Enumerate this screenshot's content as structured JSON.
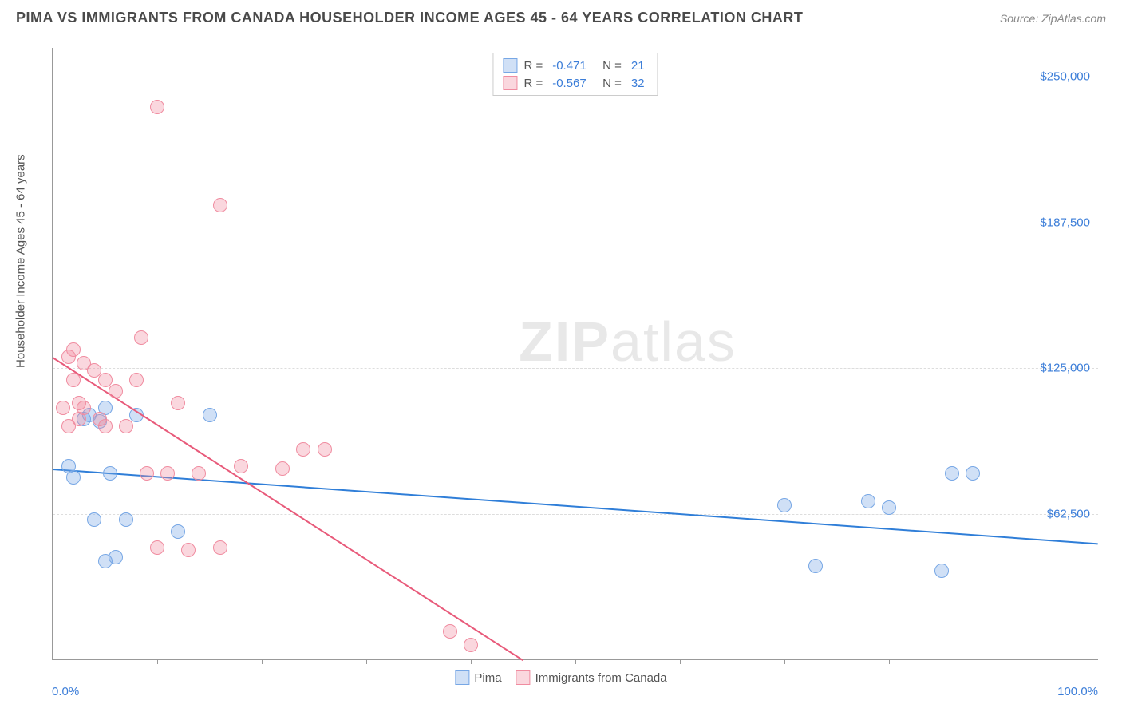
{
  "title": "PIMA VS IMMIGRANTS FROM CANADA HOUSEHOLDER INCOME AGES 45 - 64 YEARS CORRELATION CHART",
  "source": "Source: ZipAtlas.com",
  "watermark_bold": "ZIP",
  "watermark_light": "atlas",
  "chart": {
    "type": "scatter",
    "xlim": [
      0,
      100
    ],
    "ylim": [
      0,
      262500
    ],
    "x_label_min": "0.0%",
    "x_label_max": "100.0%",
    "y_axis_title": "Householder Income Ages 45 - 64 years",
    "y_ticks": [
      {
        "v": 62500,
        "label": "$62,500"
      },
      {
        "v": 125000,
        "label": "$125,000"
      },
      {
        "v": 187500,
        "label": "$187,500"
      },
      {
        "v": 250000,
        "label": "$250,000"
      }
    ],
    "x_tick_positions": [
      10,
      20,
      30,
      40,
      50,
      60,
      70,
      80,
      90
    ],
    "background_color": "#ffffff",
    "grid_color": "#dddddd",
    "series": [
      {
        "name": "Pima",
        "color_fill": "rgba(119,167,229,0.35)",
        "color_stroke": "#77a7e5",
        "line_color": "#2f7ed8",
        "R": "-0.471",
        "N": "21",
        "trend": {
          "x1": 0,
          "y1": 82000,
          "x2": 100,
          "y2": 50000
        },
        "points": [
          {
            "x": 1.5,
            "y": 83000
          },
          {
            "x": 2,
            "y": 78000
          },
          {
            "x": 3,
            "y": 103000
          },
          {
            "x": 3.5,
            "y": 105000
          },
          {
            "x": 4,
            "y": 60000
          },
          {
            "x": 4.5,
            "y": 102000
          },
          {
            "x": 5,
            "y": 42000
          },
          {
            "x": 5,
            "y": 108000
          },
          {
            "x": 5.5,
            "y": 80000
          },
          {
            "x": 6,
            "y": 44000
          },
          {
            "x": 7,
            "y": 60000
          },
          {
            "x": 8,
            "y": 105000
          },
          {
            "x": 12,
            "y": 55000
          },
          {
            "x": 15,
            "y": 105000
          },
          {
            "x": 70,
            "y": 66000
          },
          {
            "x": 73,
            "y": 40000
          },
          {
            "x": 78,
            "y": 68000
          },
          {
            "x": 80,
            "y": 65000
          },
          {
            "x": 85,
            "y": 38000
          },
          {
            "x": 86,
            "y": 80000
          },
          {
            "x": 88,
            "y": 80000
          }
        ]
      },
      {
        "name": "Immigrants from Canada",
        "color_fill": "rgba(240,140,160,0.35)",
        "color_stroke": "#f08ca0",
        "line_color": "#e85a7a",
        "R": "-0.567",
        "N": "32",
        "trend": {
          "x1": 0,
          "y1": 130000,
          "x2": 45,
          "y2": 0
        },
        "points": [
          {
            "x": 1,
            "y": 108000
          },
          {
            "x": 1.5,
            "y": 130000
          },
          {
            "x": 1.5,
            "y": 100000
          },
          {
            "x": 2,
            "y": 133000
          },
          {
            "x": 2,
            "y": 120000
          },
          {
            "x": 2.5,
            "y": 103000
          },
          {
            "x": 2.5,
            "y": 110000
          },
          {
            "x": 3,
            "y": 127000
          },
          {
            "x": 3,
            "y": 108000
          },
          {
            "x": 4,
            "y": 124000
          },
          {
            "x": 4.5,
            "y": 103000
          },
          {
            "x": 5,
            "y": 120000
          },
          {
            "x": 5,
            "y": 100000
          },
          {
            "x": 6,
            "y": 115000
          },
          {
            "x": 7,
            "y": 100000
          },
          {
            "x": 8,
            "y": 120000
          },
          {
            "x": 8.5,
            "y": 138000
          },
          {
            "x": 9,
            "y": 80000
          },
          {
            "x": 10,
            "y": 237000
          },
          {
            "x": 10,
            "y": 48000
          },
          {
            "x": 11,
            "y": 80000
          },
          {
            "x": 12,
            "y": 110000
          },
          {
            "x": 13,
            "y": 47000
          },
          {
            "x": 14,
            "y": 80000
          },
          {
            "x": 16,
            "y": 195000
          },
          {
            "x": 16,
            "y": 48000
          },
          {
            "x": 18,
            "y": 83000
          },
          {
            "x": 22,
            "y": 82000
          },
          {
            "x": 24,
            "y": 90000
          },
          {
            "x": 26,
            "y": 90000
          },
          {
            "x": 38,
            "y": 12000
          },
          {
            "x": 40,
            "y": 6000
          }
        ]
      }
    ]
  }
}
